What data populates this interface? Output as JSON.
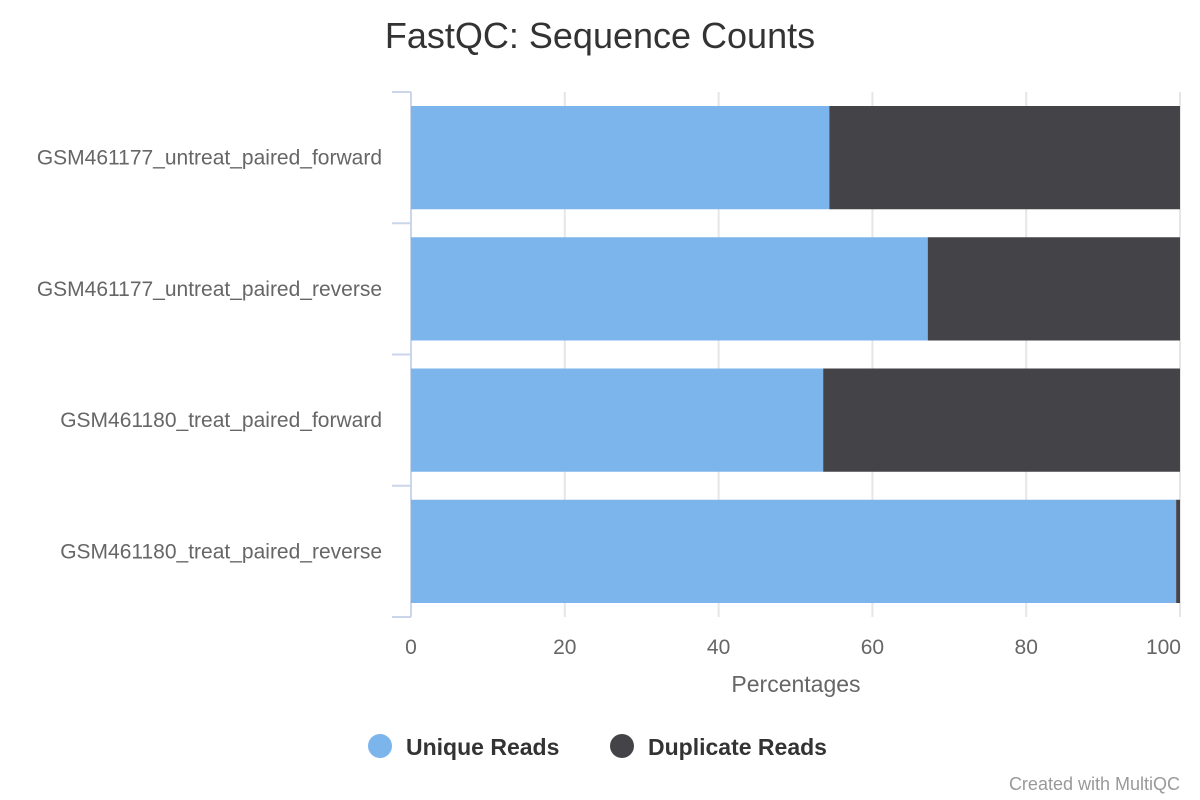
{
  "chart_data": {
    "type": "bar",
    "orientation": "horizontal",
    "stacking": "percent",
    "title": "FastQC: Sequence Counts",
    "xlabel": "Percentages",
    "categories": [
      "GSM461177_untreat_paired_forward",
      "GSM461177_untreat_paired_reverse",
      "GSM461180_treat_paired_forward",
      "GSM461180_treat_paired_reverse"
    ],
    "series": [
      {
        "name": "Unique Reads",
        "color": "#7cb5ec",
        "values": [
          54.4,
          67.2,
          53.6,
          99.5
        ]
      },
      {
        "name": "Duplicate Reads",
        "color": "#434348",
        "values": [
          45.6,
          32.8,
          46.4,
          0.5
        ]
      }
    ],
    "xlim": [
      0,
      100
    ],
    "ticks": [
      "0",
      "20",
      "40",
      "60",
      "80",
      "100"
    ],
    "grid": true,
    "legend_position": "bottom-center",
    "credits": "Created with MultiQC"
  }
}
